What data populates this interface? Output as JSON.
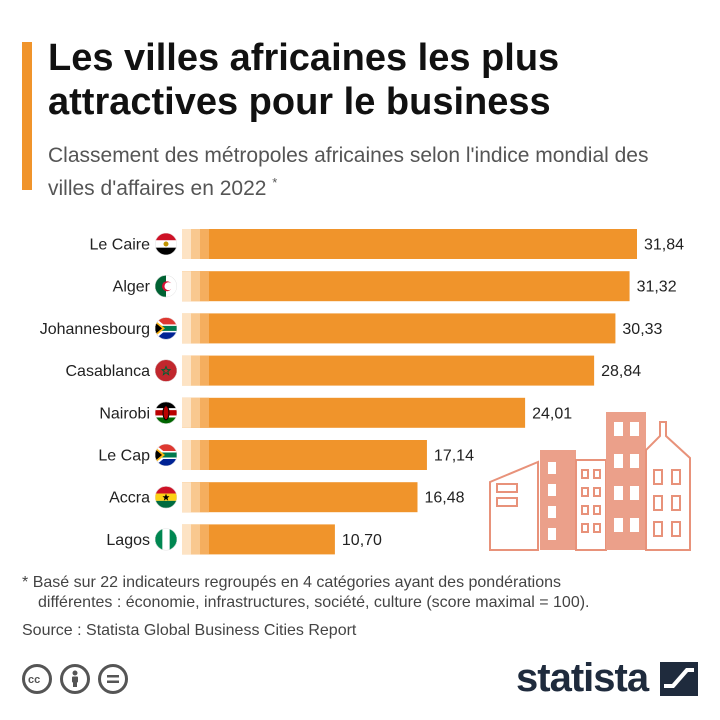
{
  "title": "Les villes africaines les plus attractives pour le business",
  "subtitle": "Classement des métropoles africaines selon l'indice mondial des villes d'affaires en 2022",
  "subtitle_mark": "*",
  "footnote_marker": "*",
  "footnote_line1": "Basé sur 22 indicateurs regroupés en 4 catégories ayant des pondérations",
  "footnote_line2": "différentes : économie, infrastructures, société, culture (score maximal = 100).",
  "source": "Source : Statista Global Business Cities Report",
  "brand": "statista",
  "license_icons": [
    "cc-icon",
    "attribution-icon",
    "no-derivatives-icon"
  ],
  "colors": {
    "accent": "#f0942b",
    "bar": "#f0942b",
    "bar_light": "#f9c88f",
    "bar_pale": "#fde3c4",
    "building": "#e8927a"
  },
  "chart_data": {
    "type": "bar",
    "orientation": "horizontal",
    "categories": [
      "Le Caire",
      "Alger",
      "Johannesbourg",
      "Casablanca",
      "Nairobi",
      "Le Cap",
      "Accra",
      "Lagos"
    ],
    "values": [
      31.84,
      31.32,
      30.33,
      28.84,
      24.01,
      17.14,
      16.48,
      10.7
    ],
    "value_labels": [
      "31,84",
      "31,32",
      "30,33",
      "28,84",
      "24,01",
      "17,14",
      "16,48",
      "10,70"
    ],
    "flags": [
      "egypt-flag-icon",
      "algeria-flag-icon",
      "south-africa-flag-icon",
      "morocco-flag-icon",
      "kenya-flag-icon",
      "south-africa-flag-icon",
      "ghana-flag-icon",
      "nigeria-flag-icon"
    ],
    "xlim": [
      0,
      31.84
    ],
    "grid": false,
    "legend": "none"
  }
}
